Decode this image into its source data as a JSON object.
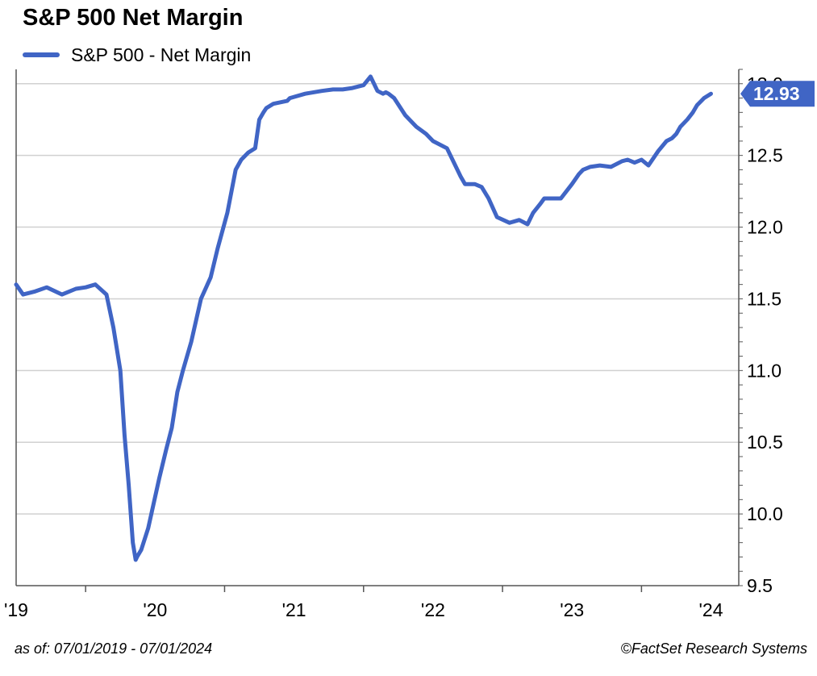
{
  "colors": {
    "series": "#4065c5",
    "grid": "#d0d0d0",
    "axis": "#555555"
  },
  "chart_data": {
    "type": "line",
    "title": "S&P 500 Net Margin",
    "legend": {
      "position": "top-left",
      "entries": [
        "S&P 500 - Net Margin"
      ]
    },
    "x_tick_labels": [
      "'19",
      "'20",
      "'21",
      "'22",
      "'23",
      "'24"
    ],
    "x_tick_years": [
      2019.0,
      2020.0,
      2021.0,
      2022.0,
      2023.0,
      2024.0
    ],
    "xlim": [
      2019.0,
      2024.2
    ],
    "y_axis_side": "right",
    "y_ticks": [
      9.5,
      10.0,
      10.5,
      11.0,
      11.5,
      12.0,
      12.5,
      13.0
    ],
    "y_tick_labels": [
      "9.5",
      "10.0",
      "10.5",
      "11.0",
      "11.5",
      "12.0",
      "12.5",
      "13.0"
    ],
    "ylim": [
      9.5,
      13.1
    ],
    "grid": true,
    "last_value_label": "12.93",
    "series": [
      {
        "name": "S&P 500 - Net Margin",
        "x": [
          2019.0,
          2019.05,
          2019.13,
          2019.22,
          2019.33,
          2019.43,
          2019.5,
          2019.57,
          2019.65,
          2019.7,
          2019.75,
          2019.78,
          2019.81,
          2019.84,
          2019.86,
          2019.87,
          2019.9,
          2019.95,
          2020.03,
          2020.08,
          2020.12,
          2020.16,
          2020.2,
          2020.26,
          2020.33,
          2020.4,
          2020.45,
          2020.52,
          2020.58,
          2020.62,
          2020.67,
          2020.72,
          2020.75,
          2020.78,
          2020.8,
          2020.85,
          2020.95,
          2020.97,
          2021.08,
          2021.2,
          2021.28,
          2021.35,
          2021.42,
          2021.5,
          2021.55,
          2021.6,
          2021.64,
          2021.66,
          2021.68,
          2021.72,
          2021.8,
          2021.88,
          2021.95,
          2022.0,
          2022.1,
          2022.2,
          2022.23,
          2022.3,
          2022.35,
          2022.4,
          2022.46,
          2022.55,
          2022.62,
          2022.68,
          2022.72,
          2022.77,
          2022.8,
          2022.86,
          2022.92,
          2023.0,
          2023.05,
          2023.08,
          2023.13,
          2023.2,
          2023.28,
          2023.36,
          2023.4,
          2023.45,
          2023.5,
          2023.55,
          2023.62,
          2023.68,
          2023.72,
          2023.75,
          2023.78,
          2023.83,
          2023.87,
          2023.9,
          2023.93,
          2023.95,
          2024.0
        ],
        "values": [
          11.6,
          11.53,
          11.55,
          11.58,
          11.53,
          11.57,
          11.58,
          11.6,
          11.53,
          11.3,
          11.0,
          10.55,
          10.2,
          9.8,
          9.68,
          9.7,
          9.75,
          9.9,
          10.25,
          10.45,
          10.6,
          10.85,
          11.0,
          11.2,
          11.5,
          11.65,
          11.85,
          12.1,
          12.4,
          12.47,
          12.52,
          12.55,
          12.75,
          12.8,
          12.83,
          12.86,
          12.88,
          12.9,
          12.93,
          12.95,
          12.96,
          12.96,
          12.97,
          12.99,
          13.05,
          12.95,
          12.93,
          12.94,
          12.93,
          12.9,
          12.78,
          12.7,
          12.65,
          12.6,
          12.55,
          12.35,
          12.3,
          12.3,
          12.28,
          12.2,
          12.07,
          12.03,
          12.05,
          12.02,
          12.1,
          12.16,
          12.2,
          12.2,
          12.2,
          12.3,
          12.37,
          12.4,
          12.42,
          12.43,
          12.42,
          12.46,
          12.47,
          12.45,
          12.47,
          12.43,
          12.53,
          12.6,
          12.62,
          12.65,
          12.7,
          12.75,
          12.8,
          12.85,
          12.88,
          12.9,
          12.93
        ]
      }
    ]
  },
  "footer": {
    "range": "as of: 07/01/2019 - 07/01/2024",
    "source": "©FactSet Research Systems"
  }
}
